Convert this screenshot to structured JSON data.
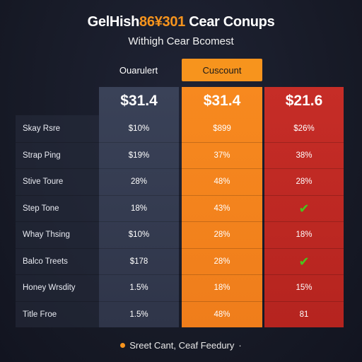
{
  "header": {
    "title_pre": "GelHish",
    "title_accent": "86¥301",
    "title_post": " Cear Conups",
    "subtitle": "Withigh Cear Bcomest"
  },
  "tabs": [
    {
      "label": "Ouarulert",
      "active": false
    },
    {
      "label": "Cuscount",
      "active": true
    }
  ],
  "columns": [
    {
      "price": "$31.4",
      "color": "#343b50"
    },
    {
      "price": "$31.4",
      "color": "#f7891f"
    },
    {
      "price": "$21.6",
      "color": "#c0292a"
    }
  ],
  "rows": [
    {
      "label": "Skay Rsre",
      "values": [
        "$10%",
        "$899",
        "$26%"
      ]
    },
    {
      "label": "Strap Ping",
      "values": [
        "$19%",
        "37%",
        "38%"
      ]
    },
    {
      "label": "Stive Toure",
      "values": [
        "28%",
        "48%",
        "28%"
      ]
    },
    {
      "label": "Step Tone",
      "values": [
        "18%",
        "43%",
        "✔"
      ]
    },
    {
      "label": "Whay Thsing",
      "values": [
        "$10%",
        "28%",
        "18%"
      ]
    },
    {
      "label": "Balco Treets",
      "values": [
        "$178",
        "28%",
        "✔"
      ]
    },
    {
      "label": "Honey Wrsdity",
      "values": [
        "1.5%",
        "18%",
        "15%"
      ]
    },
    {
      "label": "Title Froe",
      "values": [
        "1.5%",
        "48%",
        "81"
      ]
    }
  ],
  "footer": {
    "text": "Sreet Cant, Ceaf Feedury",
    "trail": "·"
  },
  "icons": {
    "check": "check-icon",
    "bullet": "orange-dot-icon"
  },
  "colors": {
    "accent": "#f7941d",
    "check": "#49c51d",
    "background": "#181b28"
  }
}
